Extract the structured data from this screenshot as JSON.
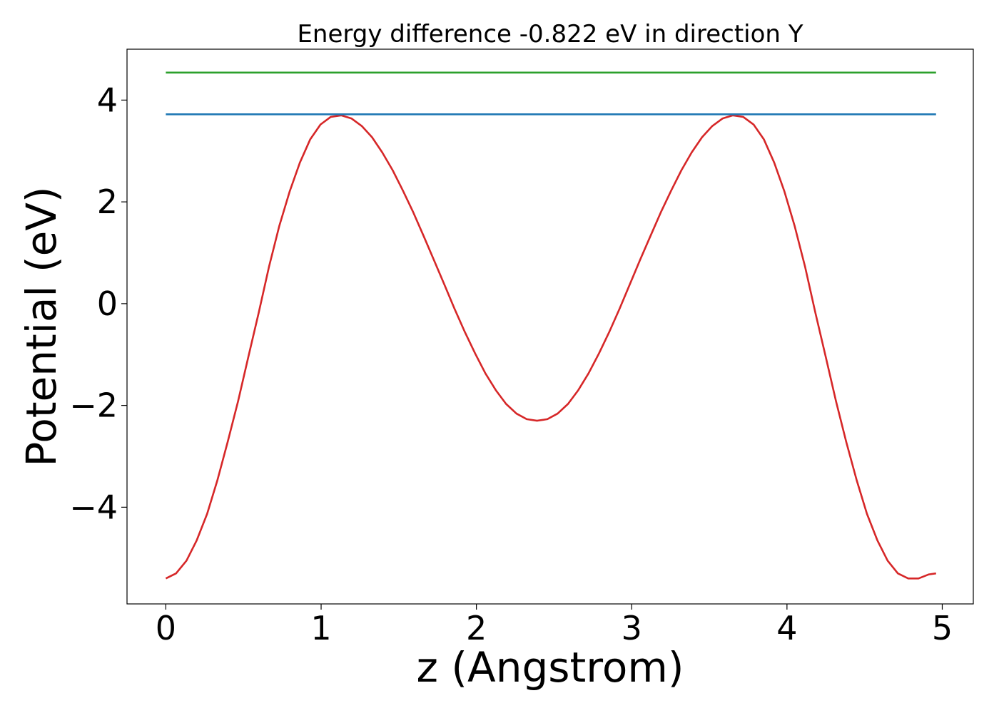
{
  "chart_data": {
    "type": "line",
    "title": "Energy difference -0.822 eV in direction Y",
    "xlabel": "z (Angstrom)",
    "ylabel": "Potential (eV)",
    "xlim": [
      -0.25,
      5.2
    ],
    "ylim": [
      -5.9,
      5.0
    ],
    "xticks": [
      0,
      1,
      2,
      3,
      4,
      5
    ],
    "xtick_labels": [
      "0",
      "1",
      "2",
      "3",
      "4",
      "5"
    ],
    "yticks": [
      -4,
      -2,
      0,
      2,
      4
    ],
    "ytick_labels": [
      "−4",
      "−2",
      "0",
      "2",
      "4"
    ],
    "grid": false,
    "series": [
      {
        "color": "#d62728",
        "x": [
          0.0,
          0.066,
          0.133,
          0.199,
          0.266,
          0.332,
          0.398,
          0.465,
          0.531,
          0.598,
          0.664,
          0.73,
          0.797,
          0.863,
          0.93,
          0.996,
          1.062,
          1.129,
          1.195,
          1.262,
          1.328,
          1.394,
          1.461,
          1.527,
          1.594,
          1.66,
          1.726,
          1.793,
          1.859,
          1.926,
          1.992,
          2.058,
          2.125,
          2.191,
          2.258,
          2.324,
          2.39,
          2.457,
          2.523,
          2.59,
          2.656,
          2.722,
          2.789,
          2.855,
          2.922,
          2.988,
          3.054,
          3.121,
          3.187,
          3.254,
          3.32,
          3.386,
          3.453,
          3.519,
          3.586,
          3.652,
          3.718,
          3.785,
          3.851,
          3.918,
          3.984,
          4.05,
          4.117,
          4.183,
          4.25,
          4.316,
          4.382,
          4.449,
          4.515,
          4.582,
          4.648,
          4.714,
          4.781,
          4.847,
          4.914,
          4.96
        ],
        "y": [
          -5.4,
          -5.3,
          -5.05,
          -4.65,
          -4.13,
          -3.47,
          -2.72,
          -1.92,
          -1.05,
          -0.18,
          0.72,
          1.52,
          2.2,
          2.77,
          3.23,
          3.52,
          3.67,
          3.7,
          3.64,
          3.49,
          3.27,
          2.97,
          2.62,
          2.22,
          1.79,
          1.33,
          0.86,
          0.38,
          -0.1,
          -0.56,
          -0.98,
          -1.37,
          -1.7,
          -1.97,
          -2.16,
          -2.27,
          -2.3,
          -2.27,
          -2.16,
          -1.97,
          -1.7,
          -1.37,
          -0.98,
          -0.56,
          -0.1,
          0.38,
          0.86,
          1.33,
          1.79,
          2.22,
          2.62,
          2.97,
          3.27,
          3.49,
          3.64,
          3.7,
          3.67,
          3.52,
          3.23,
          2.77,
          2.2,
          1.52,
          0.72,
          -0.18,
          -1.05,
          -1.92,
          -2.72,
          -3.47,
          -4.13,
          -4.65,
          -5.05,
          -5.3,
          -5.4,
          -5.4,
          -5.32,
          -5.3
        ]
      },
      {
        "color": "#1f77b4",
        "x": [
          0.0,
          4.96
        ],
        "y": [
          3.72,
          3.72
        ]
      },
      {
        "color": "#2ca02c",
        "x": [
          0.0,
          4.96
        ],
        "y": [
          4.54,
          4.54
        ]
      }
    ]
  }
}
